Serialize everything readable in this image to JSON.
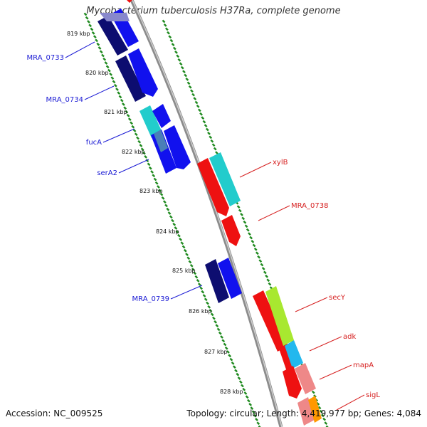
{
  "title": "Mycobacterium tuberculosis H37Ra, complete genome",
  "accession": "Accession: NC_009525",
  "topology": "Topology: circular; Length: 4,419,977 bp; Genes: 4,084",
  "colors": {
    "backbone": "#8c8c8c",
    "ticks": "#1f8a1f",
    "label_blue": "#1a1ad4",
    "label_red": "#d62020"
  },
  "kbp_labels": [
    "819 kbp",
    "820 kbp",
    "821 kbp",
    "822 kbp",
    "823 kbp",
    "824 kbp",
    "825 kbp",
    "826 kbp",
    "827 kbp",
    "828 kbp"
  ],
  "genes_left": [
    {
      "name": "MRA_0733"
    },
    {
      "name": "MRA_0734"
    },
    {
      "name": "fucA"
    },
    {
      "name": "serA2"
    },
    {
      "name": "MRA_0739"
    }
  ],
  "genes_right": [
    {
      "name": "xylB"
    },
    {
      "name": "MRA_0738"
    },
    {
      "name": "secY"
    },
    {
      "name": "adk"
    },
    {
      "name": "mapA"
    },
    {
      "name": "sigL"
    }
  ]
}
